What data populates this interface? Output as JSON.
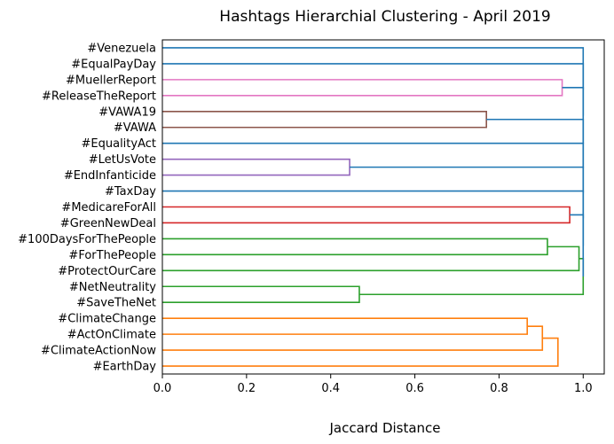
{
  "chart_data": {
    "type": "dendrogram",
    "orientation": "horizontal",
    "title": "Hashtags Hierarchial Clustering - April 2019",
    "xlabel": "Jaccard Distance",
    "ylabel": "",
    "xlim": [
      0,
      1.05
    ],
    "xticks": [
      0.0,
      0.2,
      0.4,
      0.6,
      0.8,
      1.0
    ],
    "xtick_labels": [
      "0.0",
      "0.2",
      "0.4",
      "0.6",
      "0.8",
      "1.0"
    ],
    "grid": false,
    "leaves": [
      "#Venezuela",
      "#EqualPayDay",
      "#MuellerReport",
      "#ReleaseTheReport",
      "#VAWA19",
      "#VAWA",
      "#EqualityAct",
      "#LetUsVote",
      "#EndInfanticide",
      "#TaxDay",
      "#MedicareForAll",
      "#GreenNewDeal",
      "#100DaysForThePeople",
      "#ForThePeople",
      "#ProtectOurCare",
      "#NetNeutrality",
      "#SaveTheNet",
      "#ClimateChange",
      "#ActOnClimate",
      "#ClimateActionNow",
      "#EarthDay"
    ],
    "links": [
      {
        "a": 17,
        "b": 18,
        "d": 0.867,
        "color": "#ff7f0e"
      },
      {
        "a": 17.5,
        "b": 19,
        "d": 0.903,
        "color": "#ff7f0e"
      },
      {
        "a": 18.25,
        "b": 20,
        "d": 0.94,
        "color": "#ff7f0e"
      },
      {
        "a": 12,
        "b": 13,
        "d": 0.915,
        "color": "#2ca02c"
      },
      {
        "a": 12.5,
        "b": 14,
        "d": 0.99,
        "color": "#2ca02c"
      },
      {
        "a": 15,
        "b": 16,
        "d": 0.468,
        "color": "#2ca02c"
      },
      {
        "a": 13.25,
        "b": 15.5,
        "d": 1.0,
        "color": "#2ca02c"
      },
      {
        "a": 10,
        "b": 11,
        "d": 0.968,
        "color": "#d62728"
      },
      {
        "a": 7,
        "b": 8,
        "d": 0.445,
        "color": "#9467bd"
      },
      {
        "a": 4,
        "b": 5,
        "d": 0.77,
        "color": "#8c564b"
      },
      {
        "a": 2,
        "b": 3,
        "d": 0.95,
        "color": "#e377c2"
      },
      {
        "a": 10.5,
        "b": 14.375,
        "d": 1.0,
        "color": "#1f77b4"
      },
      {
        "a": 9,
        "b": 12.4375,
        "d": 1.0,
        "color": "#1f77b4"
      },
      {
        "a": 7.5,
        "b": 10.71875,
        "d": 1.0,
        "color": "#1f77b4"
      },
      {
        "a": 6,
        "b": 9.109375,
        "d": 1.0,
        "color": "#1f77b4"
      },
      {
        "a": 4.5,
        "b": 7.5546875,
        "d": 1.0,
        "color": "#1f77b4"
      },
      {
        "a": 2.5,
        "b": 6.02734375,
        "d": 1.0,
        "color": "#1f77b4"
      },
      {
        "a": 1,
        "b": 4.263671875,
        "d": 1.0,
        "color": "#1f77b4"
      },
      {
        "a": 0,
        "b": 2.6318359375,
        "d": 1.0,
        "color": "#1f77b4"
      }
    ]
  }
}
